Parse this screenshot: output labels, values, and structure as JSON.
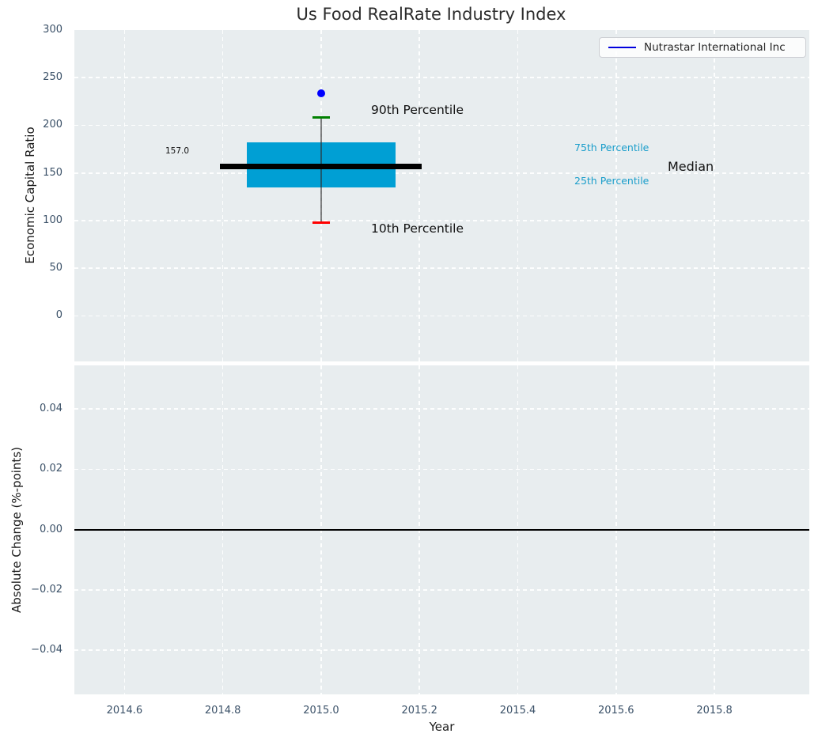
{
  "colors": {
    "axes_background": "#e8edef",
    "grid": "#ffffff",
    "tick_label": "#3b5168",
    "box": "#009fd4",
    "median_line": "#000000",
    "p90_cap": "#008000",
    "p10_cap": "#ff0000",
    "whisker": "#2d2d2d",
    "company_point": "#0000ff",
    "legend_line": "#0000dd",
    "zero_line": "#000000",
    "percentile_text": "#1b9ecb"
  },
  "chart_data": [
    {
      "type": "box",
      "title": "Us Food RealRate Industry Index",
      "xlabel": "Year",
      "ylabel": "Economic Capital Ratio",
      "xlim": [
        2014.498,
        2015.993
      ],
      "ylim": [
        -47.8,
        300
      ],
      "grid": {
        "visible": true,
        "style": "dashed",
        "color": "#ffffff"
      },
      "xticks": [
        2014.6,
        2014.8,
        2015.0,
        2015.2,
        2015.4,
        2015.6,
        2015.8
      ],
      "xtick_labels": [
        "2014.6",
        "2014.8",
        "2015.0",
        "2015.2",
        "2015.4",
        "2015.6",
        "2015.8"
      ],
      "xtick_labels_visible": false,
      "yticks": [
        300,
        250,
        200,
        150,
        100,
        50,
        0
      ],
      "ytick_labels": [
        "300",
        "250",
        "200",
        "150",
        "100",
        "50",
        "0"
      ],
      "legend": {
        "position": "upper right",
        "entries": [
          {
            "label": "Nutrastar International Inc",
            "color": "#0000dd"
          }
        ]
      },
      "boxes": [
        {
          "x": 2015.0,
          "p10": 98,
          "p25": 135,
          "median": 157,
          "p75": 182,
          "p90": 208,
          "value_label": "157.0"
        }
      ],
      "points": [
        {
          "name": "Nutrastar International Inc",
          "x": 2015.0,
          "y": 234
        }
      ],
      "annotations": {
        "p90": "90th Percentile",
        "p10": "10th Percentile",
        "p75": "75th Percentile",
        "p25": "25th Percentile",
        "median": "Median"
      }
    },
    {
      "type": "line",
      "title": "",
      "xlabel": "Year",
      "ylabel": "Absolute Change (%-points)",
      "xlim": [
        2014.498,
        2015.993
      ],
      "ylim": [
        -0.0547,
        0.0545
      ],
      "grid": {
        "visible": true,
        "style": "dashed",
        "color": "#ffffff"
      },
      "xticks": [
        2014.6,
        2014.8,
        2015.0,
        2015.2,
        2015.4,
        2015.6,
        2015.8
      ],
      "xtick_labels": [
        "2014.6",
        "2014.8",
        "2015.0",
        "2015.2",
        "2015.4",
        "2015.6",
        "2015.8"
      ],
      "xtick_labels_visible": true,
      "yticks": [
        0.04,
        0.02,
        0,
        -0.02,
        -0.04
      ],
      "ytick_labels": [
        "0.04",
        "0.02",
        "0.00",
        "−0.02",
        "−0.04"
      ],
      "zero_line": 0,
      "series": []
    }
  ]
}
